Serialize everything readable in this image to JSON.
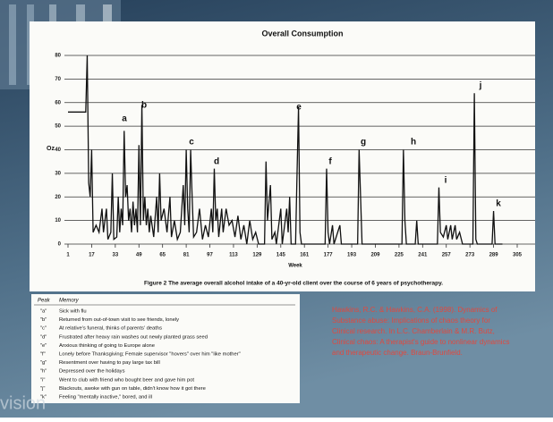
{
  "chart_data": {
    "type": "line",
    "title": "Overall Consumption",
    "caption": "Figure 2   The average overall alcohol intake of a 40-yr-old client over the course of 6 years of psychotherapy.",
    "x_label": "Week",
    "y_label": "Oz.",
    "color": "#111111",
    "x": [
      1,
      13,
      14,
      15,
      16,
      17,
      18,
      20,
      22,
      24,
      25,
      27,
      28,
      30,
      31,
      32,
      34,
      35,
      36,
      37,
      38,
      39,
      40,
      41,
      42,
      43,
      44,
      45,
      46,
      47,
      48,
      49,
      50,
      51,
      52,
      53,
      54,
      55,
      56,
      57,
      59,
      61,
      62,
      63,
      64,
      66,
      68,
      70,
      71,
      73,
      75,
      77,
      79,
      80,
      81,
      82,
      83,
      84,
      85,
      86,
      88,
      90,
      92,
      94,
      96,
      98,
      99,
      100,
      101,
      102,
      103,
      105,
      106,
      108,
      110,
      112,
      114,
      116,
      118,
      120,
      122,
      124,
      126,
      128,
      130,
      134,
      135,
      136,
      138,
      139,
      141,
      142,
      145,
      146,
      149,
      150,
      151,
      152,
      155,
      156,
      157,
      158,
      159,
      175,
      176,
      177,
      178,
      180,
      181,
      185,
      186,
      197,
      198,
      199,
      200,
      227,
      228,
      229,
      230,
      236,
      237,
      238,
      251,
      252,
      253,
      255,
      257,
      258,
      260,
      261,
      263,
      264,
      266,
      268,
      275,
      276,
      277,
      278,
      288,
      289,
      290,
      295
    ],
    "values": [
      56,
      56,
      80,
      26,
      20,
      40,
      5,
      8,
      5,
      15,
      5,
      15,
      2,
      5,
      30,
      2,
      3,
      20,
      5,
      15,
      8,
      48,
      20,
      25,
      10,
      15,
      5,
      18,
      8,
      15,
      5,
      42,
      8,
      59,
      10,
      20,
      8,
      15,
      5,
      12,
      3,
      20,
      5,
      30,
      10,
      15,
      5,
      20,
      3,
      10,
      2,
      5,
      25,
      8,
      40,
      15,
      5,
      40,
      20,
      3,
      5,
      15,
      2,
      8,
      3,
      15,
      5,
      32,
      10,
      15,
      3,
      15,
      5,
      15,
      8,
      10,
      3,
      12,
      2,
      8,
      0,
      10,
      2,
      5,
      0,
      0,
      35,
      10,
      25,
      2,
      5,
      0,
      15,
      0,
      15,
      5,
      20,
      0,
      0,
      30,
      58,
      5,
      0,
      0,
      32,
      5,
      0,
      8,
      0,
      8,
      0,
      0,
      40,
      20,
      0,
      0,
      40,
      10,
      0,
      0,
      10,
      0,
      0,
      24,
      5,
      3,
      8,
      2,
      8,
      2,
      8,
      2,
      5,
      0,
      0,
      64,
      2,
      0,
      0,
      14,
      0,
      0
    ],
    "annotations": [
      "a",
      "b",
      "c",
      "d",
      "e",
      "f",
      "g",
      "h",
      "i",
      "j",
      "k"
    ],
    "xlim": [
      1,
      305
    ],
    "ylim": [
      0,
      80
    ],
    "xticks": [
      1,
      17,
      33,
      49,
      65,
      81,
      97,
      113,
      129,
      145,
      161,
      177,
      193,
      209,
      225,
      241,
      257,
      273,
      289,
      305
    ],
    "yticks": [
      0,
      10,
      20,
      30,
      40,
      50,
      60,
      70,
      80
    ],
    "grid": true
  },
  "table": {
    "header": [
      "Peak",
      "Memory"
    ],
    "rows": [
      [
        "\"a\"",
        "Sick with flu"
      ],
      [
        "\"b\"",
        "Returned from out-of-town visit to see friends, lonely"
      ],
      [
        "\"c\"",
        "At relative's funeral, thinks of parents' deaths"
      ],
      [
        "\"d\"",
        "Frustrated after heavy rain washes out newly planted grass seed"
      ],
      [
        "\"e\"",
        "Anxious thinking of going to Europe alone"
      ],
      [
        "\"f\"",
        "Lonely before Thanksgiving; Female supervisor \"hovers\" over him \"like mother\""
      ],
      [
        "\"g\"",
        "Resentment over having to pay large tax bill"
      ],
      [
        "\"h\"",
        "Depressed over the holidays"
      ],
      [
        "\"i\"",
        "Went to club with friend who bought beer and gave him pot"
      ],
      [
        "\"j\"",
        "Blackouts, awoke with gun on table, didn't know how it got there"
      ],
      [
        "\"k\"",
        "Feeling \"mentally inactive,\" bored, and ill"
      ]
    ]
  },
  "citation": [
    "Hawkins, R.C. & Hawkins, C.A. (1998). Dynamics of",
    "Substance abuse: Implications of chaos theory for",
    "Clinical research. In L.C. Chamberlain & M.R. Butz,",
    "Clinical chaos: A therapist's guide to nonlinear dynamics",
    "and therapeutic change. Braun-Brunfield."
  ],
  "watermark": "vision"
}
